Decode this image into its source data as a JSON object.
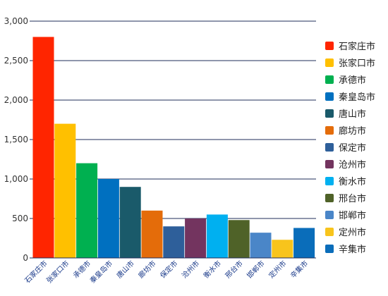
{
  "chart_data": {
    "type": "bar",
    "title": "",
    "xlabel": "",
    "ylabel": "",
    "ylim": [
      0,
      3000
    ],
    "yticks": [
      0,
      500,
      1000,
      1500,
      2000,
      2500,
      3000
    ],
    "ytick_labels": [
      "0",
      "500",
      "1,000",
      "1,500",
      "2,000",
      "2,500",
      "3,000"
    ],
    "grid": true,
    "legend_position": "right",
    "categories": [
      "石家庄市",
      "张家口市",
      "承德市",
      "秦皇岛市",
      "唐山市",
      "廊坊市",
      "保定市",
      "沧州市",
      "衡水市",
      "邢台市",
      "邯郸市",
      "定州市",
      "辛集市"
    ],
    "values": [
      2800,
      1700,
      1200,
      1000,
      900,
      600,
      400,
      500,
      550,
      480,
      320,
      230,
      380
    ],
    "colors": [
      "#ff2500",
      "#ffc000",
      "#00b050",
      "#0070c0",
      "#1a5a6a",
      "#e46c0a",
      "#2e5f9a",
      "#73345f",
      "#00b0f0",
      "#4f6228",
      "#4a86c8",
      "#f8c41c",
      "#0a6dba"
    ]
  }
}
